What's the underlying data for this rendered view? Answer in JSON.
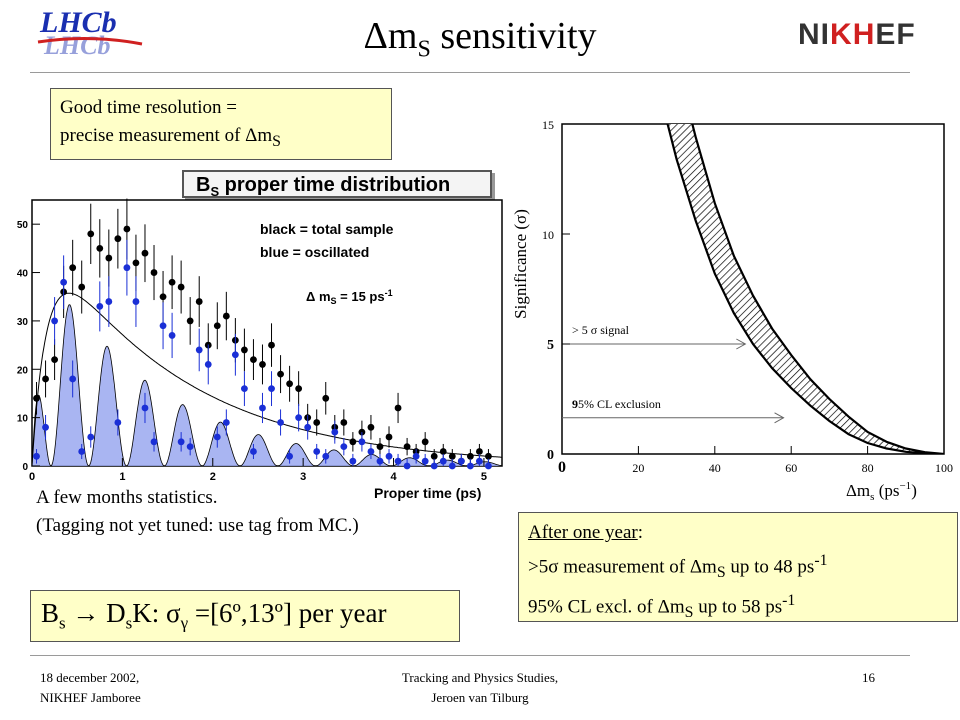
{
  "slide": {
    "title_main": "Δm",
    "title_sub": "S",
    "title_rest": " sensitivity",
    "page_number": "16",
    "footer_left_line1": "18 december 2002,",
    "footer_left_line2": "NIKHEF Jamboree",
    "footer_center_line1": "Tracking and Physics Studies,",
    "footer_center_line2": "Jeroen van Tilburg",
    "logo_left": "LHCb",
    "logo_right_parts": [
      "N",
      "I",
      "K",
      "H",
      "E",
      "F"
    ]
  },
  "box_resolution": {
    "line1": "Good time resolution =",
    "line2_main": "precise measurement of Δm",
    "line2_sub": "S"
  },
  "caption": {
    "line1": "A few months statistics.",
    "line2": "(Tagging not yet tuned: use tag from MC.)"
  },
  "box_year": {
    "title": "After one year",
    "title_colon": ":",
    "line2_a": ">5σ measurement of Δm",
    "line2_sub": "S",
    "line2_b": " up to 48 ps",
    "line2_sup": "-1",
    "line3_a": "95% CL excl. of Δm",
    "line3_sub": "S",
    "line3_b": " up to 58 ps",
    "line3_sup": "-1"
  },
  "box_channel": {
    "part1": "B",
    "part1_sub": "s",
    "part2": " → D",
    "part2_sub": "s",
    "part3": "K: σ",
    "part3_sub": "γ",
    "part4": " =[6º,13º] per year"
  },
  "chart_data": [
    {
      "type": "scatter",
      "title_main": "B",
      "title_sub": "S",
      "title_rest": " proper time distribution",
      "xlabel": "Proper time (ps)",
      "ylabel": "",
      "xlim": [
        0,
        5.2
      ],
      "ylim": [
        0,
        55
      ],
      "x_ticks": [
        "0",
        "1",
        "2",
        "3",
        "4",
        "5"
      ],
      "y_ticks": [
        "0",
        "10",
        "20",
        "30",
        "40",
        "50"
      ],
      "legend_line1": "black = total sample",
      "legend_line2": "blue = oscillated",
      "annotation_main": "Δ m",
      "annotation_sub": "S",
      "annotation_rest": " = 15 ps",
      "annotation_sup": "-1",
      "colors": {
        "total": "#000000",
        "oscillated": "#1a2fd6",
        "fill": "#9aa8f0"
      },
      "series": [
        {
          "name": "black = total sample",
          "x": [
            0.05,
            0.15,
            0.25,
            0.35,
            0.45,
            0.55,
            0.65,
            0.75,
            0.85,
            0.95,
            1.05,
            1.15,
            1.25,
            1.35,
            1.45,
            1.55,
            1.65,
            1.75,
            1.85,
            1.95,
            2.05,
            2.15,
            2.25,
            2.35,
            2.45,
            2.55,
            2.65,
            2.75,
            2.85,
            2.95,
            3.05,
            3.15,
            3.25,
            3.35,
            3.45,
            3.55,
            3.65,
            3.75,
            3.85,
            3.95,
            4.05,
            4.15,
            4.25,
            4.35,
            4.45,
            4.55,
            4.65,
            4.75,
            4.85,
            4.95,
            5.05
          ],
          "y": [
            14,
            18,
            22,
            36,
            41,
            37,
            48,
            45,
            43,
            47,
            49,
            42,
            44,
            40,
            35,
            38,
            37,
            30,
            34,
            25,
            29,
            31,
            26,
            24,
            22,
            21,
            25,
            19,
            17,
            16,
            10,
            9,
            14,
            8,
            9,
            5,
            7,
            8,
            4,
            6,
            12,
            4,
            3,
            5,
            2,
            3,
            2,
            1,
            2,
            3,
            2
          ]
        },
        {
          "name": "blue = oscillated",
          "x": [
            0.05,
            0.15,
            0.25,
            0.35,
            0.45,
            0.55,
            0.65,
            0.75,
            0.85,
            0.95,
            1.05,
            1.15,
            1.25,
            1.35,
            1.45,
            1.55,
            1.65,
            1.75,
            1.85,
            1.95,
            2.05,
            2.15,
            2.25,
            2.35,
            2.45,
            2.55,
            2.65,
            2.75,
            2.85,
            2.95,
            3.05,
            3.15,
            3.25,
            3.35,
            3.45,
            3.55,
            3.65,
            3.75,
            3.85,
            3.95,
            4.05,
            4.15,
            4.25,
            4.35,
            4.45,
            4.55,
            4.65,
            4.75,
            4.85,
            4.95,
            5.05
          ],
          "y": [
            2,
            8,
            30,
            38,
            18,
            3,
            6,
            33,
            34,
            9,
            41,
            34,
            12,
            5,
            29,
            27,
            5,
            4,
            24,
            21,
            6,
            9,
            23,
            16,
            3,
            12,
            16,
            9,
            2,
            10,
            8,
            3,
            2,
            7,
            4,
            1,
            5,
            3,
            1,
            2,
            1,
            0,
            2,
            1,
            0,
            1,
            0,
            1,
            0,
            1,
            0
          ]
        }
      ]
    },
    {
      "type": "area",
      "title": "",
      "xlabel_main": "Δm",
      "xlabel_sub": "s",
      "xlabel_rest": " (ps",
      "xlabel_sup": "−1",
      "xlabel_close": ")",
      "ylabel": "Significance (σ)",
      "xlim": [
        0,
        100
      ],
      "ylim": [
        0,
        15
      ],
      "x_ticks": [
        "0",
        "20",
        "40",
        "60",
        "80",
        "100"
      ],
      "y_ticks": [
        "0",
        "5",
        "10",
        "15"
      ],
      "annotation_signal": "> 5 σ signal",
      "annotation_excl_bold": "9",
      "annotation_excl_rest": "5% CL exclusion",
      "band": {
        "x": [
          20,
          25,
          30,
          35,
          40,
          45,
          50,
          55,
          60,
          65,
          70,
          75,
          80,
          85,
          90,
          95,
          100
        ],
        "lower": [
          20,
          16.8,
          13.4,
          10.6,
          8.2,
          6.4,
          5.0,
          3.9,
          3.0,
          2.2,
          1.5,
          0.9,
          0.5,
          0.25,
          0.1,
          0.03,
          0
        ],
        "upper": [
          20,
          20,
          17.8,
          14.4,
          11.4,
          9.0,
          7.2,
          5.7,
          4.5,
          3.4,
          2.5,
          1.7,
          1.0,
          0.55,
          0.25,
          0.08,
          0
        ]
      },
      "markers": [
        {
          "label": "> 5 σ signal",
          "y": 5,
          "x_end": 48
        },
        {
          "label": "95% CL exclusion",
          "y": 1.645,
          "x_end": 58
        }
      ]
    }
  ]
}
